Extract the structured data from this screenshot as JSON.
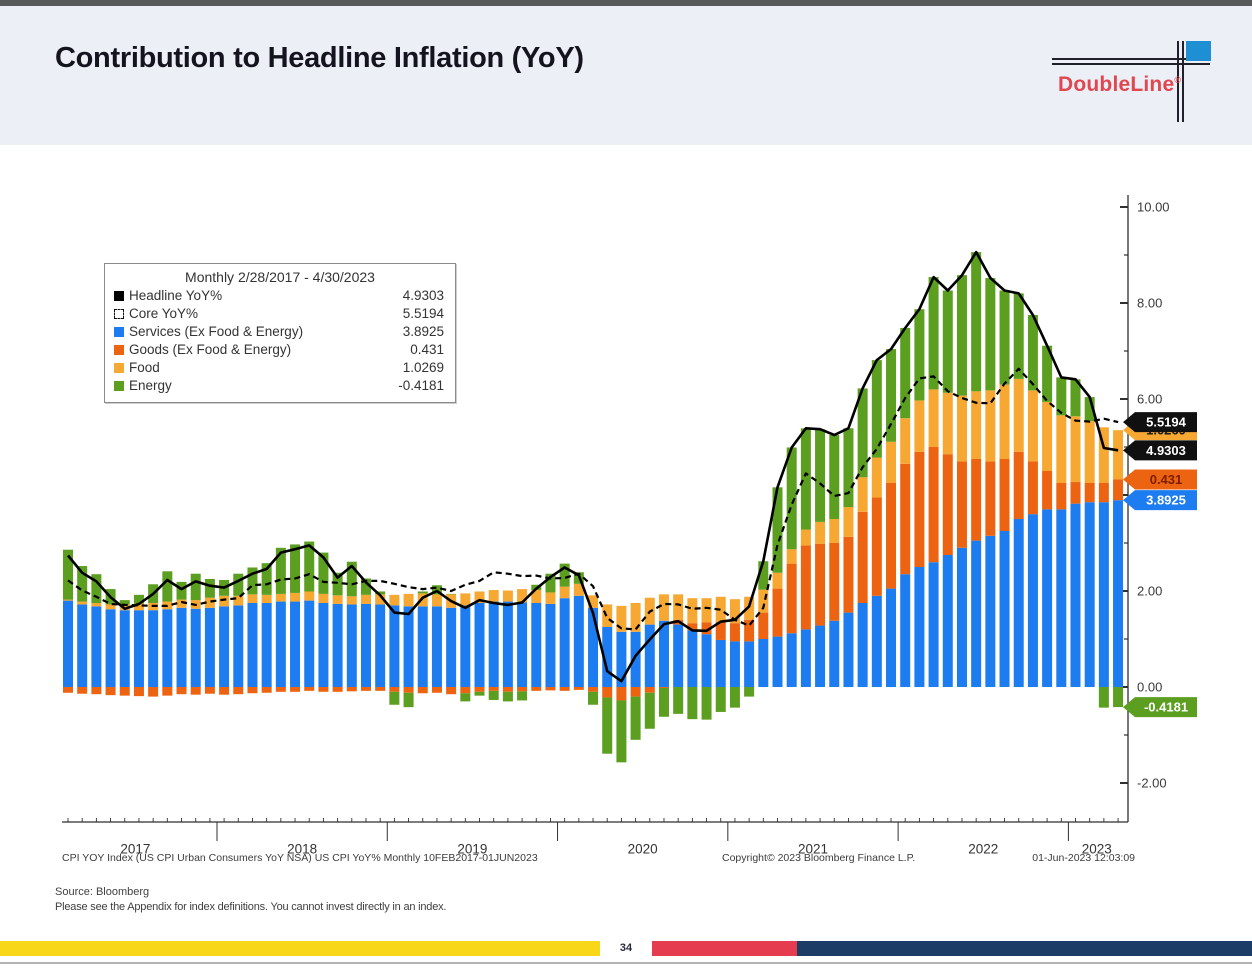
{
  "header": {
    "title": "Contribution to Headline Inflation (YoY)",
    "brand": "DoubleLine",
    "registered": "®"
  },
  "theme": {
    "header_band": "#edeff6",
    "top_strip": "#595959",
    "logo_red": "#e04750",
    "logo_blue": "#1d8fd2",
    "bar_yellow": "#f7d717",
    "bar_red": "#e63c50",
    "bar_navy": "#1c3e66",
    "page_rule": "#b3b3b3"
  },
  "legend": {
    "title": "Monthly 2/28/2017 - 4/30/2023",
    "items": [
      {
        "label": "Headline YoY%",
        "value": "4.9303",
        "marker": {
          "type": "solid",
          "color": "#000000"
        }
      },
      {
        "label": "Core YoY%",
        "value": "5.5194",
        "marker": {
          "type": "dashed",
          "color": "#111111"
        }
      },
      {
        "label": "Services (Ex Food & Energy)",
        "value": "3.8925",
        "marker": {
          "type": "solid",
          "color": "#1d7df0"
        }
      },
      {
        "label": "Goods (Ex Food & Energy)",
        "value": "0.431",
        "marker": {
          "type": "solid",
          "color": "#ec6411"
        }
      },
      {
        "label": "Food",
        "value": "1.0269",
        "marker": {
          "type": "solid",
          "color": "#f7a833"
        }
      },
      {
        "label": "Energy",
        "value": "-0.4181",
        "marker": {
          "type": "solid",
          "color": "#5b9e20"
        }
      }
    ]
  },
  "chart_data": {
    "type": "bar",
    "stacked": true,
    "title": "Contribution to Headline Inflation (YoY)",
    "xlabel": "",
    "ylabel": "",
    "ylim": [
      -2.81,
      10.25
    ],
    "y_ticks": [
      -2,
      0,
      2,
      4,
      6,
      8,
      10
    ],
    "y_minor_ticks": [
      -1,
      1,
      3,
      5,
      7,
      9
    ],
    "grid": false,
    "legend_position": "top-left",
    "x_year_labels": [
      "2017",
      "2018",
      "2019",
      "2020",
      "2021",
      "2022",
      "2023"
    ],
    "x_year_label_index": [
      4.75,
      16.5,
      28.5,
      40.5,
      52.5,
      64.5,
      72.5
    ],
    "x_year_divider_index": [
      10.5,
      22.5,
      34.5,
      46.5,
      58.5,
      70.5
    ],
    "months": [
      "2017-02",
      "2017-03",
      "2017-04",
      "2017-05",
      "2017-06",
      "2017-07",
      "2017-08",
      "2017-09",
      "2017-10",
      "2017-11",
      "2017-12",
      "2018-01",
      "2018-02",
      "2018-03",
      "2018-04",
      "2018-05",
      "2018-06",
      "2018-07",
      "2018-08",
      "2018-09",
      "2018-10",
      "2018-11",
      "2018-12",
      "2019-01",
      "2019-02",
      "2019-03",
      "2019-04",
      "2019-05",
      "2019-06",
      "2019-07",
      "2019-08",
      "2019-09",
      "2019-10",
      "2019-11",
      "2019-12",
      "2020-01",
      "2020-02",
      "2020-03",
      "2020-04",
      "2020-05",
      "2020-06",
      "2020-07",
      "2020-08",
      "2020-09",
      "2020-10",
      "2020-11",
      "2020-12",
      "2021-01",
      "2021-02",
      "2021-03",
      "2021-04",
      "2021-05",
      "2021-06",
      "2021-07",
      "2021-08",
      "2021-09",
      "2021-10",
      "2021-11",
      "2021-12",
      "2022-01",
      "2022-02",
      "2022-03",
      "2022-04",
      "2022-05",
      "2022-06",
      "2022-07",
      "2022-08",
      "2022-09",
      "2022-10",
      "2022-11",
      "2022-12",
      "2023-01",
      "2023-02",
      "2023-03",
      "2023-04"
    ],
    "series": [
      {
        "key": "services",
        "name": "Services (Ex Food & Energy)",
        "color": "#1d7df0",
        "latest": 3.8925,
        "values": [
          1.8,
          1.72,
          1.68,
          1.62,
          1.6,
          1.6,
          1.6,
          1.62,
          1.65,
          1.63,
          1.65,
          1.68,
          1.7,
          1.75,
          1.75,
          1.78,
          1.78,
          1.8,
          1.75,
          1.73,
          1.72,
          1.73,
          1.72,
          1.7,
          1.68,
          1.68,
          1.68,
          1.65,
          1.7,
          1.75,
          1.78,
          1.78,
          1.76,
          1.75,
          1.73,
          1.85,
          1.9,
          1.65,
          1.25,
          1.15,
          1.15,
          1.3,
          1.38,
          1.3,
          1.18,
          1.1,
          0.98,
          0.95,
          0.95,
          1.0,
          1.05,
          1.12,
          1.2,
          1.28,
          1.38,
          1.55,
          1.75,
          1.9,
          2.05,
          2.35,
          2.5,
          2.6,
          2.75,
          2.9,
          3.05,
          3.15,
          3.25,
          3.5,
          3.6,
          3.7,
          3.7,
          3.82,
          3.85,
          3.85,
          3.8925
        ]
      },
      {
        "key": "goods",
        "name": "Goods (Ex Food & Energy)",
        "color": "#ec6411",
        "latest": 0.431,
        "values": [
          -0.12,
          -0.14,
          -0.15,
          -0.17,
          -0.18,
          -0.19,
          -0.2,
          -0.18,
          -0.15,
          -0.16,
          -0.14,
          -0.16,
          -0.15,
          -0.13,
          -0.12,
          -0.1,
          -0.1,
          -0.08,
          -0.1,
          -0.1,
          -0.09,
          -0.08,
          -0.08,
          -0.1,
          -0.12,
          -0.13,
          -0.12,
          -0.15,
          -0.13,
          -0.1,
          -0.08,
          -0.1,
          -0.09,
          -0.08,
          -0.07,
          -0.08,
          -0.06,
          -0.1,
          -0.22,
          -0.28,
          -0.2,
          -0.12,
          -0.02,
          0.1,
          0.15,
          0.25,
          0.38,
          0.38,
          0.45,
          0.55,
          1.0,
          1.45,
          1.75,
          1.7,
          1.62,
          1.58,
          1.9,
          2.05,
          2.2,
          2.3,
          2.4,
          2.4,
          2.1,
          1.8,
          1.7,
          1.55,
          1.5,
          1.4,
          1.1,
          0.8,
          0.55,
          0.45,
          0.4,
          0.4,
          0.431
        ]
      },
      {
        "key": "food",
        "name": "Food",
        "color": "#f7a833",
        "latest": 1.0269,
        "values": [
          0.02,
          0.06,
          0.07,
          0.1,
          0.12,
          0.14,
          0.15,
          0.16,
          0.17,
          0.18,
          0.21,
          0.22,
          0.2,
          0.18,
          0.17,
          0.16,
          0.18,
          0.19,
          0.19,
          0.18,
          0.17,
          0.19,
          0.21,
          0.22,
          0.26,
          0.27,
          0.25,
          0.28,
          0.25,
          0.24,
          0.24,
          0.23,
          0.28,
          0.27,
          0.24,
          0.24,
          0.25,
          0.26,
          0.47,
          0.54,
          0.6,
          0.56,
          0.55,
          0.53,
          0.52,
          0.5,
          0.52,
          0.5,
          0.48,
          0.48,
          0.33,
          0.3,
          0.33,
          0.46,
          0.5,
          0.62,
          0.72,
          0.83,
          0.86,
          0.95,
          1.07,
          1.2,
          1.28,
          1.37,
          1.41,
          1.48,
          1.55,
          1.52,
          1.48,
          1.44,
          1.41,
          1.37,
          1.29,
          1.16,
          1.0269
        ]
      },
      {
        "key": "energy",
        "name": "Energy",
        "color": "#5b9e20",
        "latest": -0.4181,
        "values": [
          1.04,
          0.74,
          0.6,
          0.32,
          0.09,
          0.18,
          0.39,
          0.63,
          0.37,
          0.55,
          0.39,
          0.33,
          0.46,
          0.56,
          0.66,
          0.96,
          1.01,
          1.04,
          0.86,
          0.47,
          0.72,
          0.34,
          0.06,
          -0.27,
          -0.3,
          0.04,
          0.19,
          0.01,
          -0.17,
          -0.08,
          -0.19,
          -0.2,
          -0.19,
          0.11,
          0.39,
          0.48,
          0.24,
          -0.27,
          -1.17,
          -1.29,
          -0.9,
          -0.75,
          -0.6,
          -0.56,
          -0.67,
          -0.68,
          -0.52,
          -0.43,
          -0.2,
          0.59,
          1.78,
          2.12,
          2.11,
          1.93,
          1.75,
          1.64,
          1.85,
          2.03,
          1.93,
          1.88,
          1.9,
          2.34,
          2.13,
          2.51,
          2.9,
          2.34,
          1.96,
          1.78,
          1.57,
          1.17,
          0.79,
          0.77,
          0.5,
          -0.43,
          -0.4181
        ]
      }
    ],
    "lines": [
      {
        "key": "headline",
        "name": "Headline YoY%",
        "style": "solid",
        "color": "#000000",
        "width": 2.6,
        "latest": 4.9303,
        "values": [
          2.74,
          2.38,
          2.2,
          1.87,
          1.63,
          1.73,
          1.94,
          2.23,
          2.04,
          2.2,
          2.11,
          2.07,
          2.21,
          2.36,
          2.46,
          2.8,
          2.87,
          2.95,
          2.7,
          2.28,
          2.52,
          2.18,
          1.91,
          1.55,
          1.52,
          1.86,
          2.0,
          1.79,
          1.65,
          1.81,
          1.75,
          1.71,
          1.76,
          2.05,
          2.29,
          2.49,
          2.33,
          1.54,
          0.33,
          0.12,
          0.65,
          0.99,
          1.31,
          1.37,
          1.18,
          1.17,
          1.36,
          1.4,
          1.68,
          2.62,
          4.16,
          4.99,
          5.39,
          5.37,
          5.25,
          5.39,
          6.22,
          6.81,
          7.04,
          7.48,
          7.87,
          8.54,
          8.26,
          8.58,
          9.06,
          8.52,
          8.26,
          8.2,
          7.75,
          7.11,
          6.45,
          6.41,
          6.04,
          4.98,
          4.9303
        ]
      },
      {
        "key": "core",
        "name": "Core YoY%",
        "style": "dashed",
        "color": "#000000",
        "width": 2.2,
        "latest": 5.5194,
        "values": [
          2.22,
          2.01,
          1.88,
          1.73,
          1.71,
          1.7,
          1.69,
          1.69,
          1.77,
          1.71,
          1.78,
          1.82,
          1.85,
          2.12,
          2.14,
          2.24,
          2.26,
          2.35,
          2.19,
          2.17,
          2.14,
          2.21,
          2.21,
          2.15,
          2.08,
          2.04,
          2.07,
          2.0,
          2.13,
          2.21,
          2.39,
          2.36,
          2.31,
          2.32,
          2.26,
          2.27,
          2.36,
          2.1,
          1.44,
          1.22,
          1.2,
          1.57,
          1.73,
          1.72,
          1.63,
          1.65,
          1.61,
          1.4,
          1.28,
          1.65,
          2.96,
          3.8,
          4.45,
          4.24,
          3.98,
          4.04,
          4.58,
          4.96,
          5.48,
          6.02,
          6.43,
          6.47,
          6.16,
          6.02,
          5.92,
          5.91,
          6.32,
          6.63,
          6.31,
          5.96,
          5.71,
          5.55,
          5.53,
          5.59,
          5.5194
        ]
      }
    ]
  },
  "axis_tags": [
    {
      "label": "1.0269",
      "at": 5.3504,
      "bg": "#f7a833",
      "fg": "#1a1a1a"
    },
    {
      "label": "5.5194",
      "at": 5.5194,
      "bg": "#101010",
      "fg": "#ffffff"
    },
    {
      "label": "4.9303",
      "at": 4.9303,
      "bg": "#101010",
      "fg": "#ffffff"
    },
    {
      "label": "0.431",
      "at": 4.3235,
      "bg": "#ec6411",
      "fg": "#7c1d00"
    },
    {
      "label": "3.8925",
      "at": 3.8925,
      "bg": "#1d7df0",
      "fg": "#ffffff"
    },
    {
      "label": "-0.4181",
      "at": -0.4181,
      "bg": "#5b9e20",
      "fg": "#ffffff"
    }
  ],
  "footnotes": {
    "bloomberg_left": "CPI YOY Index (US CPI Urban Consumers YoY NSA) US CPI YoY%  Monthly 10FEB2017-01JUN2023",
    "bloomberg_center": "Copyright© 2023 Bloomberg Finance L.P.",
    "bloomberg_right": "01-Jun-2023 12:03:09",
    "source": "Source: Bloomberg",
    "disclaimer": "Please see the Appendix for index definitions. You cannot invest directly in an index."
  },
  "footer_bar": {
    "page": "34"
  }
}
